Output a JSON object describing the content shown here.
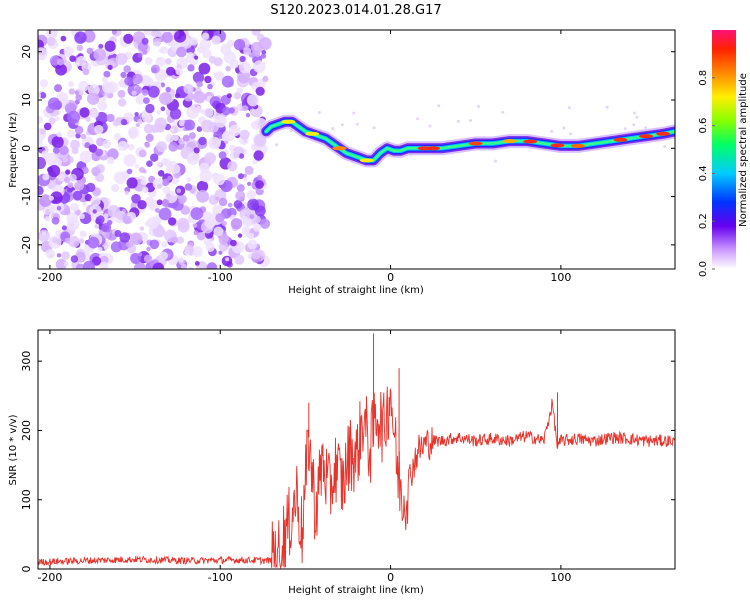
{
  "title": "S120.2023.014.01.28.G17",
  "chart_data": [
    {
      "type": "heatmap",
      "xlabel": "Height of straight line (km)",
      "ylabel": "Frequency (Hz)",
      "xlim": [
        -207,
        167
      ],
      "ylim": [
        -25,
        24.5
      ],
      "xticks": [
        -200,
        -100,
        0,
        100
      ],
      "yticks": [
        -20,
        -10,
        0,
        10,
        20
      ],
      "noise_region_x": [
        -207,
        -73
      ],
      "ridge": {
        "x": [
          -73,
          -70,
          -66,
          -62,
          -58,
          -54,
          -50,
          -46,
          -42,
          -38,
          -34,
          -30,
          -26,
          -22,
          -18,
          -14,
          -10,
          -6,
          -2,
          2,
          6,
          10,
          14,
          20,
          30,
          40,
          50,
          60,
          70,
          80,
          90,
          100,
          110,
          120,
          130,
          140,
          150,
          160,
          167
        ],
        "y": [
          3.5,
          4.5,
          5.0,
          5.5,
          5.5,
          4.5,
          3.5,
          3.0,
          2.5,
          2.0,
          1.0,
          0.0,
          -1.0,
          -1.5,
          -2.0,
          -2.5,
          -2.5,
          -1.0,
          0.0,
          -0.5,
          -0.5,
          0.0,
          0.0,
          0.0,
          0.0,
          0.5,
          1.0,
          1.0,
          1.5,
          1.5,
          1.0,
          0.5,
          0.5,
          1.0,
          1.5,
          2.0,
          2.5,
          3.0,
          3.5
        ]
      },
      "colorbar": {
        "label": "Normalized spectral amplitude",
        "range": [
          0,
          1
        ],
        "ticks": [
          "0.0",
          "0.2",
          "0.4",
          "0.6",
          "0.8"
        ]
      }
    },
    {
      "type": "line",
      "xlabel": "Height of straight line (km)",
      "ylabel": "SNR (10 * v/v)",
      "xlim": [
        -207,
        167
      ],
      "ylim": [
        0,
        345
      ],
      "xticks": [
        -200,
        -100,
        0,
        100
      ],
      "yticks": [
        0,
        100,
        200,
        300
      ],
      "series": [
        {
          "color": "#e8322a",
          "x": [
            -207,
            -180,
            -150,
            -120,
            -90,
            -70,
            -60,
            -55,
            -52,
            -48,
            -44,
            -40,
            -36,
            -32,
            -28,
            -24,
            -20,
            -16,
            -12,
            -8,
            -4,
            0,
            4,
            8,
            12,
            16,
            20,
            25,
            30,
            40,
            50,
            60,
            70,
            80,
            90,
            95,
            98,
            100,
            110,
            120,
            130,
            140,
            150,
            167
          ],
          "y": [
            10,
            12,
            14,
            12,
            13,
            12,
            60,
            110,
            50,
            190,
            80,
            160,
            110,
            150,
            120,
            170,
            160,
            220,
            170,
            230,
            200,
            260,
            140,
            100,
            140,
            170,
            180,
            185,
            185,
            190,
            185,
            188,
            185,
            192,
            185,
            240,
            175,
            185,
            188,
            185,
            190,
            188,
            185,
            185
          ]
        }
      ]
    }
  ]
}
